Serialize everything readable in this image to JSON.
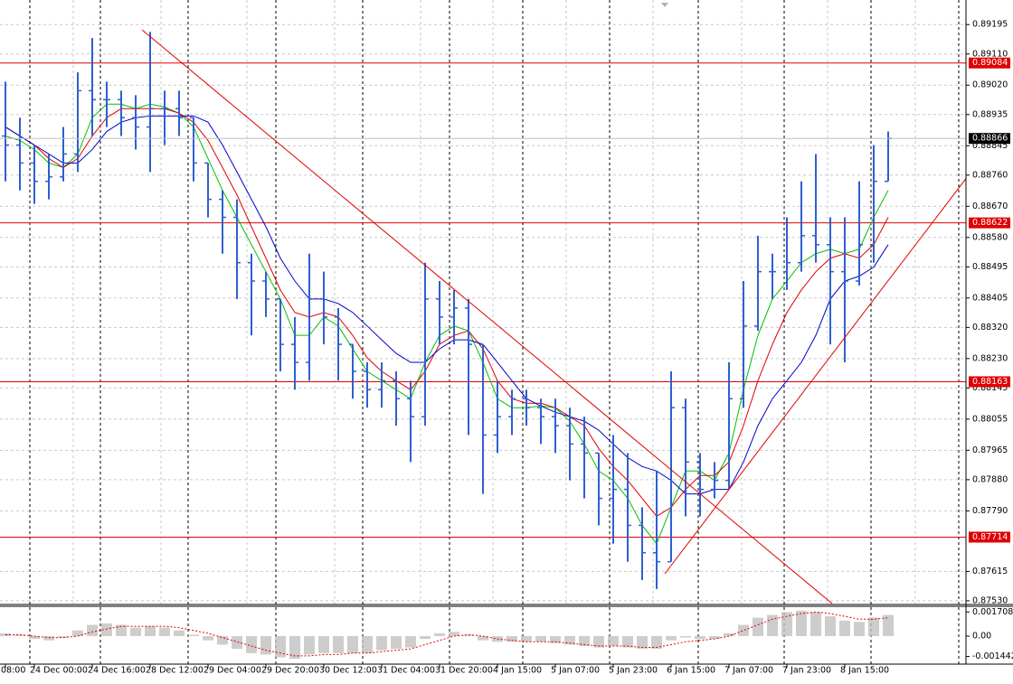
{
  "chart_data": [
    {
      "type": "ohlc",
      "categories": [
        "08:00",
        null,
        "24 Dec 00:00",
        null,
        null,
        null,
        "24 Dec 16:00",
        null,
        null,
        null,
        "28 Dec 12:00",
        null,
        null,
        null,
        "29 Dec 04:00",
        null,
        null,
        null,
        "29 Dec 20:00",
        null,
        null,
        null,
        "30 Dec 12:00",
        null,
        null,
        null,
        "31 Dec 04:00",
        null,
        null,
        null,
        "31 Dec 20:00",
        null,
        null,
        null,
        "4 Jan 15:00",
        null,
        null,
        null,
        "5 Jan 07:00",
        null,
        null,
        null,
        "5 Jan 23:00",
        null,
        null,
        null,
        "6 Jan 15:00",
        null,
        null,
        null,
        "7 Jan 07:00",
        null,
        null,
        null,
        "7 Jan 23:00",
        null,
        null,
        null,
        "8 Jan 15:00",
        null,
        null,
        null
      ],
      "open": [
        0.88873,
        0.88847,
        0.88795,
        0.88742,
        0.88755,
        0.88821,
        0.89004,
        0.88978,
        0.88978,
        0.88926,
        0.88899,
        0.88952,
        0.88952,
        0.88926,
        0.88795,
        0.8869,
        0.88638,
        0.88507,
        0.88454,
        0.88402,
        0.88271,
        0.88219,
        0.88402,
        0.8835,
        0.88271,
        0.88193,
        0.8814,
        0.88166,
        0.88114,
        0.88062,
        0.88402,
        0.8835,
        0.88376,
        0.88271,
        0.88009,
        0.88062,
        0.88114,
        0.88088,
        0.88062,
        0.88036,
        0.87983,
        0.87957,
        0.87826,
        0.87852,
        0.87748,
        0.87669,
        0.87643,
        0.88088,
        0.87931,
        0.87852,
        0.87878,
        0.88114,
        0.88324,
        0.88481,
        0.88481,
        0.88507,
        0.88585,
        0.88559,
        0.88481,
        0.88454,
        0.88559,
        0.88742
      ],
      "high": [
        0.8903,
        0.88926,
        0.88847,
        0.88821,
        0.88899,
        0.89057,
        0.89156,
        0.8903,
        0.89004,
        0.88991,
        0.89174,
        0.89004,
        0.89004,
        0.88926,
        0.88795,
        0.88716,
        0.8869,
        0.88533,
        0.88481,
        0.88402,
        0.8835,
        0.88533,
        0.88481,
        0.88376,
        0.88271,
        0.88219,
        0.88219,
        0.88193,
        0.88166,
        0.88507,
        0.88454,
        0.88428,
        0.88402,
        0.88271,
        0.88166,
        0.8814,
        0.8814,
        0.88114,
        0.88114,
        0.88088,
        0.88062,
        0.87957,
        0.88009,
        0.87957,
        0.878,
        0.87905,
        0.88193,
        0.88114,
        0.87957,
        0.87931,
        0.88219,
        0.88454,
        0.88585,
        0.88533,
        0.88638,
        0.88742,
        0.88821,
        0.88638,
        0.88638,
        0.88742,
        0.88847,
        0.88886
      ],
      "low": [
        0.88742,
        0.88716,
        0.88677,
        0.8869,
        0.88742,
        0.88769,
        0.88873,
        0.88899,
        0.88873,
        0.88834,
        0.88769,
        0.88847,
        0.88873,
        0.88742,
        0.88638,
        0.88533,
        0.88402,
        0.88297,
        0.8835,
        0.88193,
        0.8814,
        0.88166,
        0.88271,
        0.88166,
        0.88114,
        0.88088,
        0.88088,
        0.88036,
        0.87931,
        0.88036,
        0.88271,
        0.88271,
        0.88009,
        0.87839,
        0.87957,
        0.88009,
        0.88036,
        0.87983,
        0.87957,
        0.87878,
        0.87826,
        0.87748,
        0.87695,
        0.87643,
        0.8759,
        0.87564,
        0.87643,
        0.87774,
        0.87774,
        0.87826,
        0.87852,
        0.88088,
        0.8831,
        0.88402,
        0.88428,
        0.88481,
        0.88507,
        0.88271,
        0.88219,
        0.88441,
        0.88507,
        0.88742
      ],
      "close": [
        0.88847,
        0.88795,
        0.88742,
        0.88755,
        0.88821,
        0.89004,
        0.88978,
        0.88978,
        0.88926,
        0.88899,
        0.88952,
        0.88952,
        0.88926,
        0.88795,
        0.8869,
        0.88638,
        0.88507,
        0.88454,
        0.88402,
        0.88271,
        0.88219,
        0.88402,
        0.8835,
        0.88271,
        0.88193,
        0.8814,
        0.88166,
        0.88114,
        0.88062,
        0.88402,
        0.8835,
        0.88376,
        0.88271,
        0.88009,
        0.88062,
        0.88114,
        0.88088,
        0.88062,
        0.88036,
        0.87983,
        0.87957,
        0.87826,
        0.87852,
        0.87748,
        0.87669,
        0.87643,
        0.88088,
        0.87931,
        0.87852,
        0.87878,
        0.88114,
        0.88324,
        0.88481,
        0.88481,
        0.88507,
        0.88585,
        0.88559,
        0.88481,
        0.88454,
        0.88559,
        0.88742,
        0.88866
      ],
      "color": "#2f5fd0",
      "lines": [
        {
          "color": "#00c000",
          "values": [
            0.88873,
            0.8886,
            0.88834,
            0.88795,
            0.88782,
            0.88821,
            0.88926,
            0.88965,
            0.88965,
            0.88952,
            0.88965,
            0.88957,
            0.88939,
            0.88899,
            0.88808,
            0.88716,
            0.88638,
            0.88559,
            0.88481,
            0.88402,
            0.88297,
            0.88297,
            0.8835,
            0.88324,
            0.88258,
            0.88193,
            0.88166,
            0.8814,
            0.88114,
            0.88219,
            0.88297,
            0.88324,
            0.8831,
            0.88219,
            0.88114,
            0.88088,
            0.88088,
            0.88093,
            0.88088,
            0.88049,
            0.87983,
            0.87905,
            0.87878,
            0.87826,
            0.87748,
            0.87695,
            0.878,
            0.87905,
            0.87905,
            0.87878,
            0.87957,
            0.8814,
            0.88297,
            0.88402,
            0.88454,
            0.88507,
            0.88533,
            0.88546,
            0.88533,
            0.88546,
            0.88638,
            0.88716
          ]
        },
        {
          "color": "#e00000",
          "values": [
            0.88899,
            0.88873,
            0.88847,
            0.88808,
            0.88782,
            0.88808,
            0.88873,
            0.88926,
            0.88952,
            0.88952,
            0.88952,
            0.88952,
            0.88939,
            0.88913,
            0.8886,
            0.88782,
            0.88703,
            0.88611,
            0.8852,
            0.88428,
            0.88363,
            0.8835,
            0.88363,
            0.8835,
            0.88297,
            0.88232,
            0.88193,
            0.88166,
            0.8814,
            0.88193,
            0.88271,
            0.88297,
            0.8831,
            0.88258,
            0.88166,
            0.88114,
            0.88101,
            0.88101,
            0.88088,
            0.88062,
            0.88036,
            0.8797,
            0.87918,
            0.87878,
            0.87826,
            0.87774,
            0.878,
            0.87852,
            0.87892,
            0.87892,
            0.87931,
            0.88036,
            0.88166,
            0.88271,
            0.88363,
            0.88428,
            0.88481,
            0.8852,
            0.88533,
            0.8852,
            0.88559,
            0.88638
          ]
        },
        {
          "color": "#0000c8",
          "values": [
            0.88899,
            0.88873,
            0.88847,
            0.88821,
            0.88795,
            0.88795,
            0.88834,
            0.88886,
            0.88913,
            0.88926,
            0.88931,
            0.88931,
            0.88931,
            0.88931,
            0.88913,
            0.88847,
            0.88769,
            0.8869,
            0.88611,
            0.8852,
            0.88454,
            0.88402,
            0.88402,
            0.88389,
            0.88363,
            0.88324,
            0.88284,
            0.88245,
            0.88219,
            0.88219,
            0.88258,
            0.88284,
            0.88284,
            0.88271,
            0.88219,
            0.88166,
            0.88114,
            0.88093,
            0.88075,
            0.88062,
            0.88049,
            0.88023,
            0.87983,
            0.87944,
            0.87918,
            0.87905,
            0.87878,
            0.87839,
            0.87839,
            0.87852,
            0.87852,
            0.87931,
            0.88036,
            0.88114,
            0.88166,
            0.88219,
            0.88297,
            0.88402,
            0.88454,
            0.88468,
            0.88494,
            0.88559
          ]
        }
      ],
      "levels": [
        0.89084,
        0.88622,
        0.88163,
        0.87714
      ],
      "level_color": "#e00000",
      "last_price": 0.88866,
      "ylim": [
        0.87522,
        0.89266
      ],
      "yticks": [
        0.89195,
        {
          "value": 0.8911,
          "label": "0.89110"
        },
        {
          "value": 0.8902,
          "label": "0.89020"
        },
        0.88935,
        0.88845,
        {
          "value": 0.8876,
          "label": "0.88760"
        },
        {
          "value": 0.8867,
          "label": "0.88670"
        },
        {
          "value": 0.8858,
          "label": "0.88580"
        },
        0.88495,
        0.88405,
        {
          "value": 0.8832,
          "label": "0.88320"
        },
        {
          "value": 0.8823,
          "label": "0.88230"
        },
        0.88145,
        0.88055,
        0.87965,
        {
          "value": 0.8788,
          "label": "0.87880"
        },
        {
          "value": 0.8779,
          "label": "0.87790"
        },
        0.87615,
        {
          "value": 0.8753,
          "label": "0.87530"
        }
      ],
      "grid": true
    },
    {
      "type": "histogram",
      "values": [
        0.0002,
        0.0001,
        -0.0002,
        -0.0003,
        -0.0001,
        0.0004,
        0.0008,
        0.0009,
        0.0008,
        0.0006,
        0.0007,
        0.0006,
        0.0004,
        0.0001,
        -0.0003,
        -0.0006,
        -0.0009,
        -0.0012,
        -0.0013,
        -0.0015,
        -0.0016,
        -0.0013,
        -0.0012,
        -0.0012,
        -0.0012,
        -0.0012,
        -0.001,
        -0.0009,
        -0.0008,
        -0.0002,
        0.0002,
        0.0003,
        0.0001,
        -0.0003,
        -0.0004,
        -0.0004,
        -0.0004,
        -0.0004,
        -0.0005,
        -0.0006,
        -0.0007,
        -0.0008,
        -0.0007,
        -0.0008,
        -0.0009,
        -0.0009,
        -0.0003,
        -0.0001,
        -0.0002,
        -0.0002,
        0.0002,
        0.0008,
        0.0013,
        0.0015,
        0.0017,
        0.0018,
        0.0017,
        0.0014,
        0.0011,
        0.001,
        0.0013,
        0.0015
      ],
      "signal": [
        0.0001,
        0.0001,
        0,
        -0.0001,
        -0.0001,
        0,
        0.0003,
        0.0005,
        0.0007,
        0.0007,
        0.0007,
        0.0007,
        0.0006,
        0.0004,
        0.0002,
        -0.0001,
        -0.0004,
        -0.0007,
        -0.001,
        -0.0012,
        -0.0014,
        -0.0014,
        -0.0013,
        -0.0013,
        -0.0012,
        -0.0012,
        -0.0011,
        -0.001,
        -0.0009,
        -0.0006,
        -0.0003,
        0,
        0.0001,
        0,
        -0.0002,
        -0.0003,
        -0.0004,
        -0.0004,
        -0.0004,
        -0.0005,
        -0.0006,
        -0.0007,
        -0.0007,
        -0.0007,
        -0.0008,
        -0.0008,
        -0.0006,
        -0.0004,
        -0.0003,
        -0.0002,
        0,
        0.0004,
        0.0008,
        0.0012,
        0.0014,
        0.0016,
        0.0017,
        0.0016,
        0.0014,
        0.0012,
        0.0012,
        0.0013
      ],
      "color": "#c0c0c0",
      "signal_color": "#e00000",
      "ylim": [
        -0.00198,
        0.00211
      ],
      "yticks": [
        0.001708,
        {
          "value": 0,
          "label": "0.00"
        },
        -0.001442
      ]
    }
  ]
}
